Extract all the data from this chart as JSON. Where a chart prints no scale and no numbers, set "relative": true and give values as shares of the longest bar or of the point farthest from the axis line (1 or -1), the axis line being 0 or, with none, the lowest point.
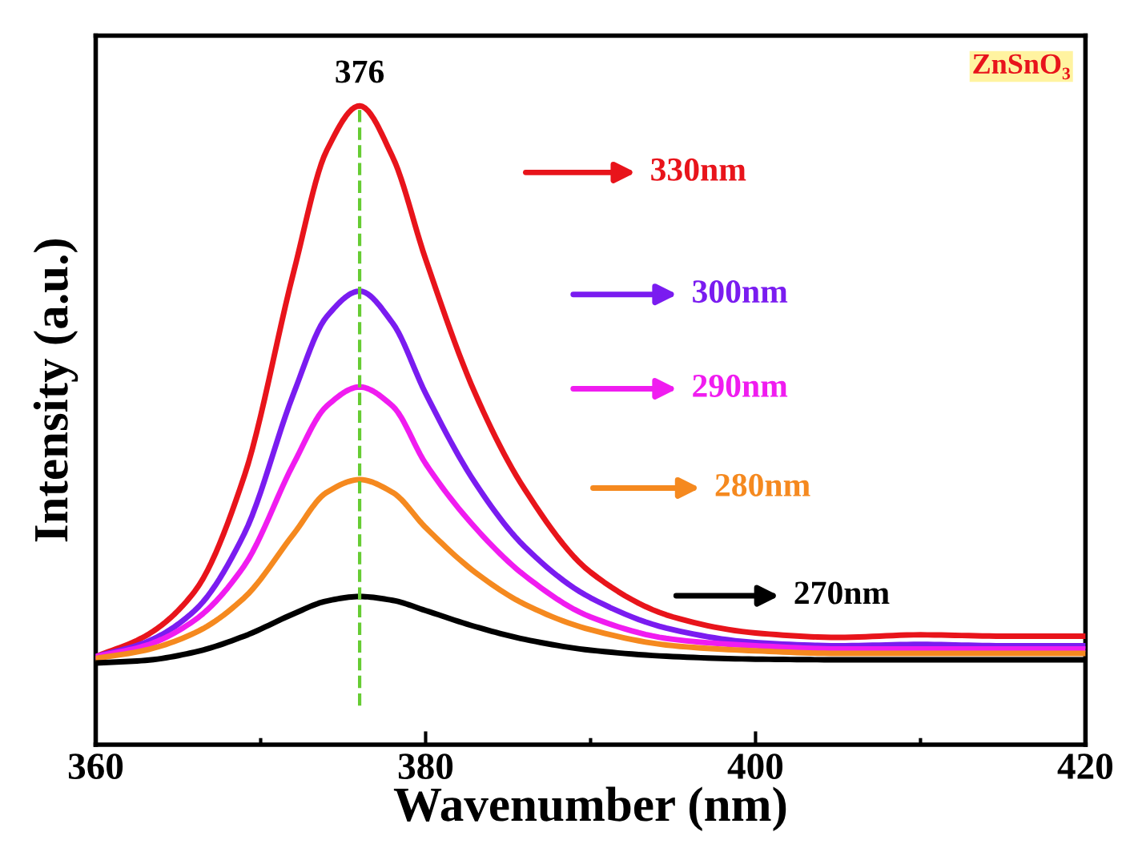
{
  "chart_data": {
    "type": "line",
    "relative": true,
    "xlabel": "Wavenumber (nm)",
    "ylabel": "Intensity (a.u.)",
    "annotations": [
      "ZnSnO₃"
    ],
    "x": [
      360,
      363,
      366,
      369,
      372,
      374,
      376,
      378,
      380,
      383,
      386,
      390,
      395,
      400,
      405,
      410,
      415,
      420
    ],
    "xlim": [
      360,
      420
    ],
    "xticks": [
      360,
      380,
      400,
      420
    ],
    "grid": false,
    "legend": "right",
    "marker": "none",
    "line_style": "solid",
    "ref_lines": [
      {
        "axis": "x",
        "value": 376,
        "label": "376",
        "color": "#66cc33",
        "line_style": "dashed"
      }
    ],
    "series": [
      {
        "name": "330nm",
        "color": "#e8141b",
        "values": [
          0.138,
          0.17,
          0.24,
          0.42,
          0.74,
          0.93,
          1.0,
          0.92,
          0.76,
          0.55,
          0.4,
          0.27,
          0.2,
          0.175,
          0.168,
          0.172,
          0.17,
          0.17
        ]
      },
      {
        "name": "300nm",
        "color": "#7a1cf0",
        "values": [
          0.138,
          0.16,
          0.21,
          0.33,
          0.55,
          0.67,
          0.71,
          0.66,
          0.55,
          0.41,
          0.31,
          0.23,
          0.18,
          0.16,
          0.155,
          0.157,
          0.155,
          0.155
        ]
      },
      {
        "name": "290nm",
        "color": "#f01cf0",
        "values": [
          0.138,
          0.155,
          0.195,
          0.28,
          0.44,
          0.53,
          0.56,
          0.53,
          0.44,
          0.34,
          0.265,
          0.2,
          0.165,
          0.155,
          0.15,
          0.15,
          0.15,
          0.15
        ]
      },
      {
        "name": "280nm",
        "color": "#f5891f",
        "values": [
          0.135,
          0.148,
          0.175,
          0.23,
          0.33,
          0.395,
          0.415,
          0.395,
          0.34,
          0.27,
          0.22,
          0.18,
          0.155,
          0.147,
          0.143,
          0.143,
          0.143,
          0.143
        ]
      },
      {
        "name": "270nm",
        "color": "#000000",
        "values": [
          0.128,
          0.132,
          0.145,
          0.17,
          0.205,
          0.225,
          0.232,
          0.226,
          0.21,
          0.185,
          0.165,
          0.148,
          0.138,
          0.134,
          0.133,
          0.133,
          0.133,
          0.133
        ]
      }
    ]
  }
}
